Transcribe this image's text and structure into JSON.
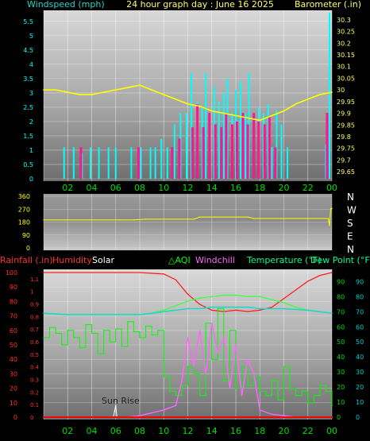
{
  "title": "24 hour graph day : June 16 2025",
  "colors": {
    "wind": "#00ffff",
    "gust": "#ff1493",
    "barometer": "#ffff00",
    "direction": "#ffff00",
    "rain": "#ff0000",
    "humidity": "#ff2020",
    "solar": "#ffffff",
    "aqi": "#00ff00",
    "windchill": "#ff66ff",
    "temperature": "#22d6c8",
    "dewpoint": "#ffffff",
    "axis_green": "#00dd00",
    "axis_red": "#ff3030",
    "axis_cyan": "#00cccc"
  },
  "labels": {
    "windspeed": "Windspeed (mph)",
    "barometer": "Barometer (.in)",
    "rainfall": "Rainfall (.in)",
    "humidity": "Humidity",
    "solar": "Solar",
    "aqi": "AQI",
    "windchill": "Windchill",
    "temperature": "Temperature (°F)",
    "dewpoint": "Dew Point (°F)",
    "sunrise": "Sun Rise"
  },
  "chart_data": [
    {
      "type": "bar",
      "panel": "wind",
      "x_ticks": [
        "02",
        "04",
        "06",
        "08",
        "10",
        "12",
        "14",
        "16",
        "18",
        "20",
        "22",
        "00"
      ],
      "y_left_ticks": [
        "0",
        "0.5",
        "1",
        "1.5",
        "2",
        "2.5",
        "3",
        "3.5",
        "4",
        "4.5",
        "5",
        "5.5"
      ],
      "y_left_range": [
        0,
        5.8
      ],
      "y_right_ticks": [
        "29.65",
        "29.7",
        "29.75",
        "29.8",
        "29.85",
        "29.9",
        "29.95",
        "30",
        "30.05",
        "30.1",
        "30.15",
        "30.2",
        "30.25",
        "30.3"
      ],
      "y_right_range": [
        29.62,
        30.33
      ],
      "series": [
        {
          "name": "Windspeed (mph)",
          "hours": [
            1.7,
            2.5,
            3.2,
            3.9,
            4.6,
            5.4,
            6.0,
            7.3,
            8.1,
            8.9,
            9.3,
            9.8,
            10.3,
            10.9,
            11.4,
            11.9,
            12.3,
            12.8,
            13.2,
            13.5,
            13.8,
            14.2,
            14.6,
            15.0,
            15.3,
            15.7,
            16.0,
            16.4,
            16.8,
            17.1,
            17.5,
            17.9,
            18.3,
            18.7,
            19.0,
            19.4,
            19.8,
            20.3,
            23.5,
            23.8
          ],
          "values": [
            1.1,
            1.1,
            0.9,
            1.1,
            1.1,
            1.1,
            1.1,
            1.1,
            1.1,
            1.1,
            1.1,
            1.4,
            1.1,
            1.9,
            2.3,
            2.3,
            3.7,
            2.7,
            2.5,
            3.7,
            2.3,
            3.2,
            2.7,
            3.0,
            3.5,
            2.3,
            3.1,
            3.4,
            2.3,
            3.7,
            1.9,
            2.5,
            2.3,
            2.6,
            1.1,
            2.4,
            1.9,
            1.1,
            1.2,
            5.8
          ]
        },
        {
          "name": "Gust",
          "hours": [
            3.1,
            7.9,
            10.7,
            11.3,
            12.4,
            12.8,
            13.3,
            13.8,
            14.3,
            14.8,
            15.2,
            15.7,
            16.1,
            16.6,
            17.0,
            17.5,
            17.9,
            18.4,
            18.8,
            19.3,
            23.6
          ],
          "values": [
            1.1,
            1.1,
            1.1,
            1.4,
            1.8,
            2.6,
            1.8,
            2.3,
            1.9,
            1.8,
            2.3,
            1.9,
            2.0,
            2.3,
            1.9,
            2.3,
            2.0,
            1.9,
            2.2,
            1.1,
            2.3
          ]
        },
        {
          "name": "Barometer (.in)",
          "hours": [
            0,
            1,
            2,
            3,
            4,
            5,
            6,
            7,
            8,
            9,
            10,
            11,
            12,
            13,
            14,
            15,
            16,
            17,
            18,
            19,
            20,
            21,
            22,
            23,
            24
          ],
          "values": [
            30.0,
            30.0,
            29.99,
            29.98,
            29.98,
            29.99,
            30.0,
            30.01,
            30.02,
            30.0,
            29.98,
            29.96,
            29.94,
            29.93,
            29.91,
            29.9,
            29.89,
            29.88,
            29.87,
            29.89,
            29.91,
            29.94,
            29.96,
            29.98,
            29.99
          ]
        }
      ]
    },
    {
      "type": "line",
      "panel": "wind_direction",
      "y_left_ticks": [
        "0",
        "90",
        "180",
        "270",
        "360"
      ],
      "y_left_range": [
        0,
        360
      ],
      "y_right_ticks": [
        "N",
        "W",
        "S",
        "E",
        "N"
      ],
      "series": [
        {
          "name": "Wind Direction",
          "hours": [
            0,
            7.5,
            8.5,
            12.5,
            13.0,
            17.0,
            17.5,
            23.7,
            23.8,
            23.9,
            24
          ],
          "values": [
            195,
            195,
            200,
            200,
            215,
            215,
            205,
            205,
            155,
            275,
            275
          ]
        }
      ]
    },
    {
      "type": "line",
      "panel": "temperature",
      "x_ticks": [
        "02",
        "04",
        "06",
        "08",
        "10",
        "12",
        "14",
        "16",
        "18",
        "20",
        "22",
        "00"
      ],
      "y_left_ticks": [
        "0",
        "10",
        "20",
        "30",
        "40",
        "50",
        "60",
        "70",
        "80",
        "90",
        "100"
      ],
      "y_left_range": [
        0,
        100
      ],
      "y_rain_ticks": [
        "0",
        "0.1",
        "0.2",
        "0.3",
        "0.4",
        "0.5",
        "0.6",
        "0.7",
        "0.8",
        "0.9",
        "1",
        "1.1"
      ],
      "y_right_ticks": [
        "0",
        "10",
        "20",
        "30",
        "40",
        "50",
        "60",
        "70",
        "80",
        "90"
      ],
      "y_right_range": [
        0,
        96
      ],
      "series": [
        {
          "name": "Humidity",
          "hours": [
            0,
            2,
            4,
            6,
            8,
            10,
            11,
            12,
            13,
            14,
            15,
            16,
            17,
            18,
            19,
            20,
            21,
            22,
            23,
            24
          ],
          "values": [
            100,
            100,
            100,
            100,
            100,
            99,
            95,
            85,
            78,
            74,
            73,
            74,
            73,
            74,
            76,
            82,
            88,
            94,
            98,
            100
          ]
        },
        {
          "name": "Temperature (°F)",
          "hours": [
            0,
            2,
            4,
            6,
            8,
            9,
            10,
            11,
            12,
            13,
            14,
            15,
            16,
            17,
            18,
            19,
            20,
            21,
            22,
            23,
            24
          ],
          "values": [
            69,
            68,
            68,
            68,
            68,
            69,
            71,
            74,
            77,
            79,
            80,
            81,
            81,
            80,
            80,
            78,
            76,
            73,
            71,
            70,
            69
          ]
        },
        {
          "name": "Dew Point (°F)",
          "hours": [
            0,
            2,
            4,
            6,
            8,
            10,
            12,
            13,
            14,
            15,
            16,
            17,
            18,
            20,
            22,
            24
          ],
          "values": [
            69,
            68,
            68,
            68,
            68,
            70,
            72,
            72,
            73,
            73,
            73,
            73,
            72,
            72,
            71,
            69
          ]
        },
        {
          "name": "AQI",
          "hours": [
            0,
            0.5,
            1,
            1.5,
            2,
            2.5,
            3,
            3.5,
            4,
            4.5,
            5,
            5.5,
            6,
            6.5,
            7,
            7.5,
            8,
            8.5,
            9,
            9.5,
            10,
            10.5,
            11,
            11.5,
            12,
            12.5,
            13,
            13.5,
            14,
            14.5,
            15,
            15.5,
            16,
            16.5,
            17,
            17.5,
            18,
            18.5,
            19,
            19.5,
            20,
            20.5,
            21,
            21.5,
            22,
            22.5,
            23,
            23.5,
            24
          ],
          "values": [
            55,
            62,
            58,
            50,
            60,
            55,
            48,
            64,
            58,
            44,
            60,
            52,
            61,
            49,
            66,
            59,
            55,
            63,
            57,
            60,
            28,
            18,
            15,
            22,
            35,
            30,
            15,
            65,
            40,
            75,
            25,
            60,
            20,
            35,
            22,
            28,
            18,
            15,
            25,
            12,
            35,
            20,
            15,
            18,
            10,
            15,
            22,
            18,
            8
          ]
        },
        {
          "name": "Solar",
          "hours": [
            0,
            5.8,
            5.9,
            6.0,
            6.1,
            8,
            24
          ],
          "values": [
            0,
            0,
            4,
            8,
            0,
            0,
            0
          ]
        },
        {
          "name": "Windchill",
          "hours": [
            0,
            7,
            8,
            9,
            10,
            11,
            11.5,
            12,
            12.5,
            13,
            13.5,
            14,
            14.5,
            15,
            15.5,
            16,
            16.5,
            17,
            17.5,
            18,
            19,
            20,
            21,
            24
          ],
          "values": [
            0,
            0,
            1,
            3,
            5,
            8,
            25,
            55,
            35,
            60,
            30,
            65,
            45,
            55,
            20,
            50,
            15,
            40,
            30,
            5,
            2,
            1,
            0,
            0
          ]
        },
        {
          "name": "Rainfall (.in)",
          "hours": [
            0,
            24
          ],
          "values": [
            0,
            0
          ]
        }
      ]
    }
  ]
}
